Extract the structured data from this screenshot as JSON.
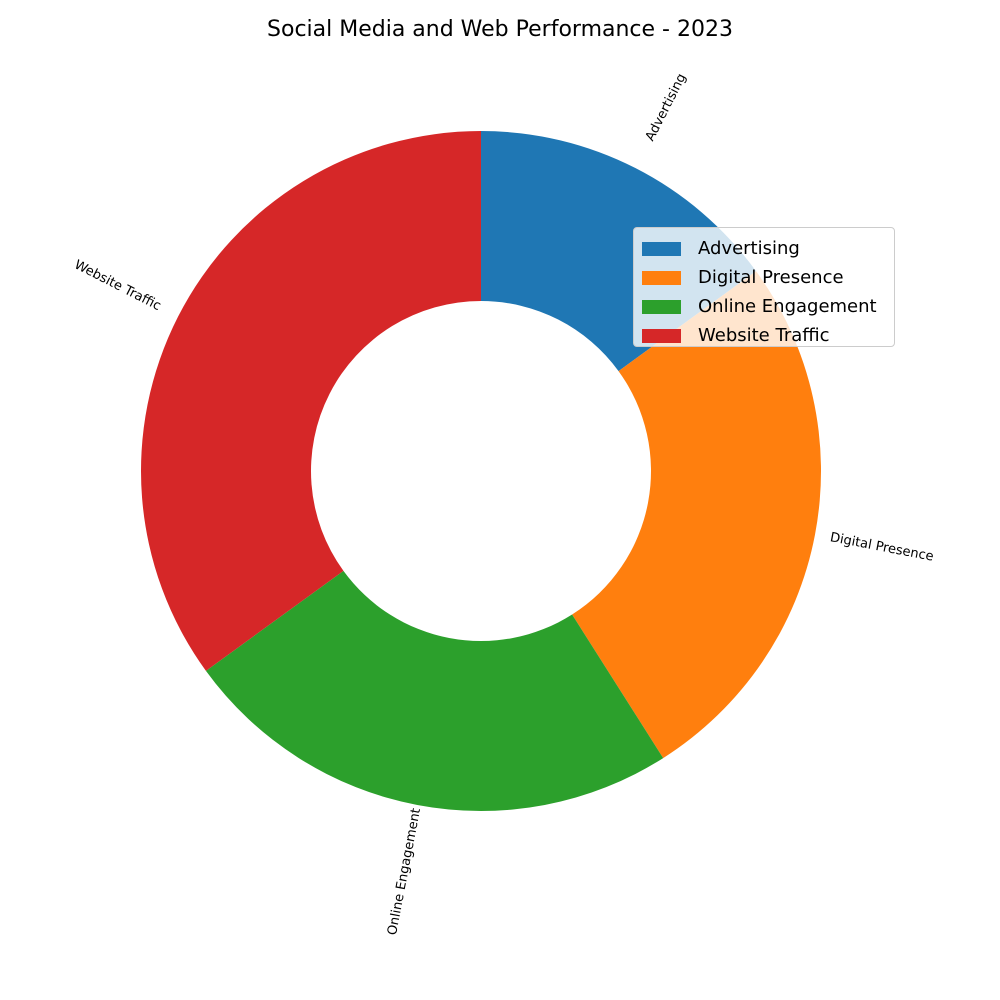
{
  "chart_data": {
    "type": "pie",
    "variant": "donut",
    "title": "Social Media and Web Performance - 2023",
    "categories": [
      "Advertising",
      "Digital Presence",
      "Online Engagement",
      "Website Traffic"
    ],
    "values": [
      15,
      26,
      24,
      35
    ],
    "colors": [
      "#1f77b4",
      "#ff7f0e",
      "#2ca02c",
      "#d62728"
    ],
    "start_angle_deg": 90,
    "direction": "clockwise",
    "legend": {
      "position": "upper-right",
      "entries": [
        "Advertising",
        "Digital Presence",
        "Online Engagement",
        "Website Traffic"
      ]
    }
  }
}
